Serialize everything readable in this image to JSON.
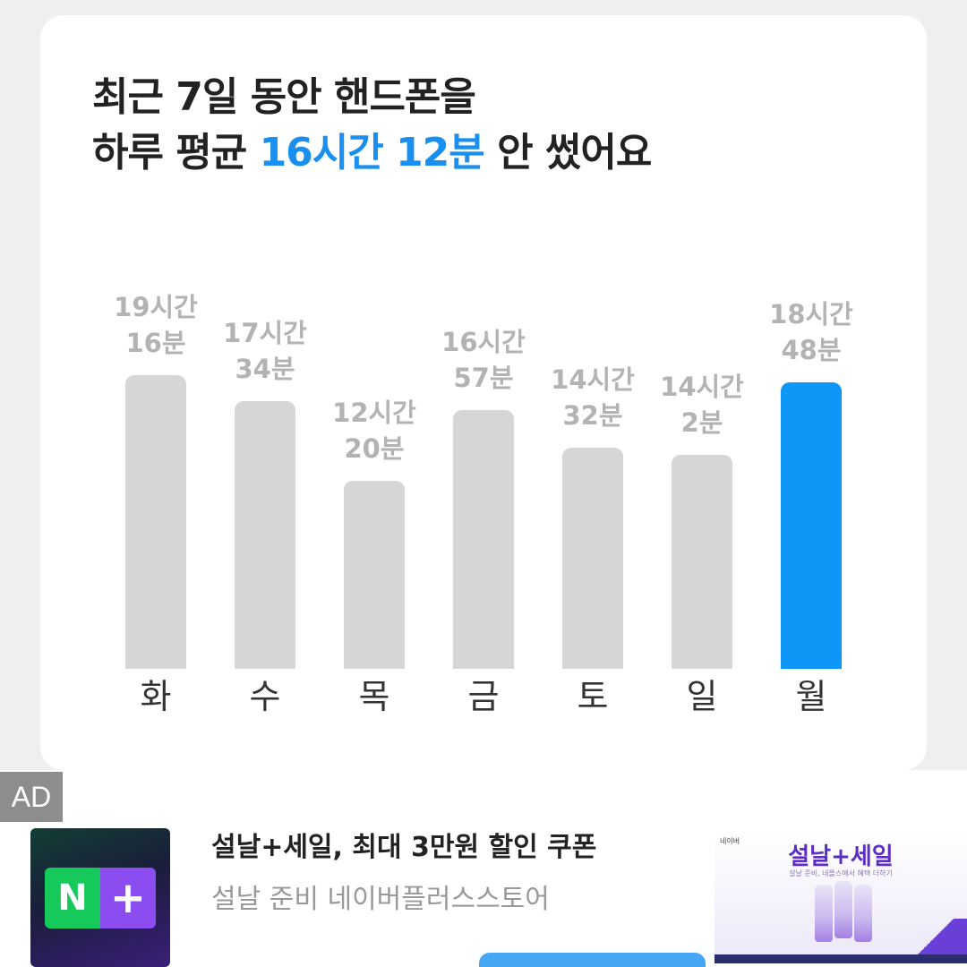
{
  "headline": {
    "line1": "최근 7일 동안 핸드폰을",
    "line2_prefix": "하루 평균 ",
    "line2_highlight": "16시간 12분",
    "line2_suffix": " 안 썼어요"
  },
  "colors": {
    "bar_default": "#d6d6d6",
    "bar_active": "#0f97f7",
    "highlight": "#1a8ff0"
  },
  "chart_data": {
    "type": "bar",
    "categories": [
      "화",
      "수",
      "목",
      "금",
      "토",
      "일",
      "월"
    ],
    "values": [
      1156,
      1054,
      740,
      1017,
      872,
      842,
      1128
    ],
    "value_unit": "minutes",
    "labels": [
      [
        "19시간",
        "16분"
      ],
      [
        "17시간",
        "34분"
      ],
      [
        "12시간",
        "20분"
      ],
      [
        "16시간",
        "57분"
      ],
      [
        "14시간",
        "32분"
      ],
      [
        "14시간",
        "2분"
      ],
      [
        "18시간",
        "48분"
      ]
    ],
    "highlight_index": 6,
    "title": "",
    "xlabel": "",
    "ylabel": ""
  },
  "ad": {
    "badge": "AD",
    "icon_letter": "N",
    "icon_plus": "+",
    "title": "설날+세일, 최대 3만원 할인 쿠폰",
    "description": "설날 준비 네이버플러스스토어",
    "image_brand": "네이버",
    "image_promo": "설날+세일",
    "image_sub": "설날 준비, 네플스에서 혜택 더하기"
  }
}
